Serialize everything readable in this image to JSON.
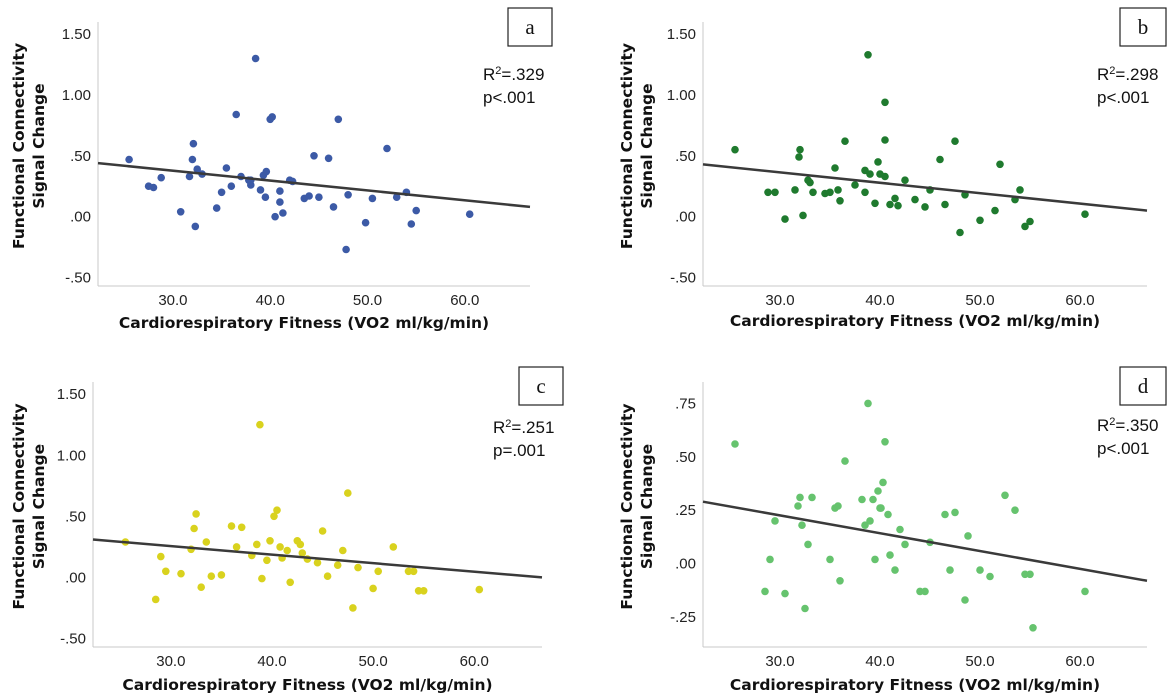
{
  "chart_data": [
    {
      "type": "scatter",
      "panel_label": "a",
      "xlabel": "Cardiorespiratory Fitness (VO2 ml/kg/min)",
      "ylabel_line1": "Functional Connectivity",
      "ylabel_line2": "Signal Change",
      "xlim": [
        22.3,
        66.7
      ],
      "ylim": [
        -0.57,
        1.6
      ],
      "x_ticks": [
        "30.0",
        "40.0",
        "50.0",
        "60.0"
      ],
      "y_ticks": [
        "1.50",
        "1.00",
        ".50",
        ".00",
        "-.50"
      ],
      "x_tick_values": [
        30,
        40,
        50,
        60
      ],
      "y_tick_values": [
        1.5,
        1.0,
        0.5,
        0.0,
        -0.5
      ],
      "stat_r2_prefix": "R",
      "stat_r2_value": "=.329",
      "stat_p": "p<.001",
      "fit_line": {
        "x": [
          22.3,
          66.7
        ],
        "y": [
          0.44,
          0.08
        ]
      },
      "point_color": "#3c5aa6",
      "points": [
        [
          25.5,
          0.47
        ],
        [
          27.5,
          0.25
        ],
        [
          28.0,
          0.24
        ],
        [
          28.8,
          0.32
        ],
        [
          30.8,
          0.04
        ],
        [
          31.7,
          0.33
        ],
        [
          32.0,
          0.47
        ],
        [
          32.5,
          0.39
        ],
        [
          33.0,
          0.35
        ],
        [
          34.5,
          0.07
        ],
        [
          35.0,
          0.2
        ],
        [
          35.5,
          0.4
        ],
        [
          36.0,
          0.25
        ],
        [
          36.5,
          0.84
        ],
        [
          37.0,
          0.33
        ],
        [
          37.8,
          0.3
        ],
        [
          38.0,
          0.26
        ],
        [
          38.5,
          1.3
        ],
        [
          39.0,
          0.22
        ],
        [
          39.3,
          0.34
        ],
        [
          39.6,
          0.37
        ],
        [
          39.5,
          0.16
        ],
        [
          40.0,
          0.8
        ],
        [
          40.2,
          0.82
        ],
        [
          40.5,
          0.0
        ],
        [
          41.0,
          0.12
        ],
        [
          41.0,
          0.21
        ],
        [
          41.3,
          0.03
        ],
        [
          42.0,
          0.3
        ],
        [
          42.3,
          0.29
        ],
        [
          44.0,
          0.17
        ],
        [
          44.5,
          0.5
        ],
        [
          45.0,
          0.16
        ],
        [
          46.0,
          0.48
        ],
        [
          46.5,
          0.08
        ],
        [
          47.0,
          0.8
        ],
        [
          47.8,
          -0.27
        ],
        [
          48.0,
          0.18
        ],
        [
          49.8,
          -0.05
        ],
        [
          50.5,
          0.15
        ],
        [
          52.0,
          0.56
        ],
        [
          53.0,
          0.16
        ],
        [
          54.0,
          0.2
        ],
        [
          54.5,
          -0.06
        ],
        [
          55.0,
          0.05
        ],
        [
          60.5,
          0.02
        ],
        [
          32.1,
          0.6
        ],
        [
          32.3,
          -0.08
        ],
        [
          38.0,
          0.3
        ],
        [
          43.5,
          0.15
        ]
      ]
    },
    {
      "type": "scatter",
      "panel_label": "b",
      "xlabel": "Cardiorespiratory Fitness (VO2 ml/kg/min)",
      "ylabel_line1": "Functional Connectivity",
      "ylabel_line2": "Signal Change",
      "xlim": [
        22.3,
        66.7
      ],
      "ylim": [
        -0.57,
        1.6
      ],
      "x_ticks": [
        "30.0",
        "40.0",
        "50.0",
        "60.0"
      ],
      "y_ticks": [
        "1.50",
        "1.00",
        ".50",
        ".00",
        "-.50"
      ],
      "x_tick_values": [
        30,
        40,
        50,
        60
      ],
      "y_tick_values": [
        1.5,
        1.0,
        0.5,
        0.0,
        -0.5
      ],
      "stat_r2_prefix": "R",
      "stat_r2_value": "=.298",
      "stat_p": "p<.001",
      "fit_line": {
        "x": [
          22.3,
          66.7
        ],
        "y": [
          0.43,
          0.05
        ]
      },
      "point_color": "#1f7a2e",
      "points": [
        [
          25.5,
          0.55
        ],
        [
          28.8,
          0.2
        ],
        [
          29.5,
          0.2
        ],
        [
          30.5,
          -0.02
        ],
        [
          31.5,
          0.22
        ],
        [
          31.9,
          0.49
        ],
        [
          32.0,
          0.55
        ],
        [
          32.3,
          0.01
        ],
        [
          32.8,
          0.3
        ],
        [
          33.3,
          0.2
        ],
        [
          34.5,
          0.19
        ],
        [
          35.0,
          0.2
        ],
        [
          35.5,
          0.4
        ],
        [
          36.0,
          0.13
        ],
        [
          36.5,
          0.62
        ],
        [
          37.5,
          0.26
        ],
        [
          38.5,
          0.2
        ],
        [
          38.8,
          1.33
        ],
        [
          39.0,
          0.35
        ],
        [
          39.5,
          0.11
        ],
        [
          39.8,
          0.45
        ],
        [
          40.0,
          0.35
        ],
        [
          40.5,
          0.63
        ],
        [
          40.5,
          0.94
        ],
        [
          41.0,
          0.1
        ],
        [
          41.5,
          0.15
        ],
        [
          41.8,
          0.09
        ],
        [
          42.5,
          0.3
        ],
        [
          43.5,
          0.14
        ],
        [
          44.5,
          0.08
        ],
        [
          45.0,
          0.22
        ],
        [
          46.0,
          0.47
        ],
        [
          46.5,
          0.1
        ],
        [
          47.5,
          0.62
        ],
        [
          48.0,
          -0.13
        ],
        [
          48.5,
          0.18
        ],
        [
          50.0,
          -0.03
        ],
        [
          51.5,
          0.05
        ],
        [
          52.0,
          0.43
        ],
        [
          53.5,
          0.14
        ],
        [
          54.0,
          0.22
        ],
        [
          54.5,
          -0.08
        ],
        [
          55.0,
          -0.04
        ],
        [
          60.5,
          0.02
        ],
        [
          38.5,
          0.38
        ],
        [
          40.5,
          0.33
        ],
        [
          35.8,
          0.22
        ],
        [
          33.0,
          0.28
        ]
      ]
    },
    {
      "type": "scatter",
      "panel_label": "c",
      "xlabel": "Cardiorespiratory Fitness (VO2 ml/kg/min)",
      "ylabel_line1": "Functional Connectivity",
      "ylabel_line2": "Signal Change",
      "xlim": [
        22.3,
        66.7
      ],
      "ylim": [
        -0.57,
        1.6
      ],
      "x_ticks": [
        "30.0",
        "40.0",
        "50.0",
        "60.0"
      ],
      "y_ticks": [
        "1.50",
        "1.00",
        ".50",
        ".00",
        "-.50"
      ],
      "x_tick_values": [
        30,
        40,
        50,
        60
      ],
      "y_tick_values": [
        1.5,
        1.0,
        0.5,
        0.0,
        -0.5
      ],
      "stat_r2_prefix": "R",
      "stat_r2_value": "=.251",
      "stat_p": "p=.001",
      "fit_line": {
        "x": [
          22.3,
          66.7
        ],
        "y": [
          0.31,
          0.0
        ]
      },
      "point_color": "#d9d21e",
      "points": [
        [
          25.5,
          0.29
        ],
        [
          28.5,
          -0.18
        ],
        [
          29.0,
          0.17
        ],
        [
          29.5,
          0.05
        ],
        [
          31.0,
          0.03
        ],
        [
          32.0,
          0.23
        ],
        [
          32.3,
          0.4
        ],
        [
          32.5,
          0.52
        ],
        [
          33.0,
          -0.08
        ],
        [
          33.5,
          0.29
        ],
        [
          34.0,
          0.01
        ],
        [
          35.0,
          0.02
        ],
        [
          36.0,
          0.42
        ],
        [
          36.5,
          0.25
        ],
        [
          37.0,
          0.41
        ],
        [
          38.5,
          0.27
        ],
        [
          38.8,
          1.25
        ],
        [
          39.0,
          -0.01
        ],
        [
          39.5,
          0.14
        ],
        [
          39.8,
          0.3
        ],
        [
          40.2,
          0.5
        ],
        [
          40.5,
          0.55
        ],
        [
          40.8,
          0.25
        ],
        [
          41.0,
          0.16
        ],
        [
          41.5,
          0.22
        ],
        [
          41.8,
          -0.04
        ],
        [
          42.5,
          0.3
        ],
        [
          42.8,
          0.27
        ],
        [
          43.5,
          0.15
        ],
        [
          44.5,
          0.12
        ],
        [
          45.0,
          0.38
        ],
        [
          45.5,
          0.01
        ],
        [
          46.5,
          0.1
        ],
        [
          47.0,
          0.22
        ],
        [
          47.5,
          0.69
        ],
        [
          48.0,
          -0.25
        ],
        [
          48.5,
          0.08
        ],
        [
          50.0,
          -0.09
        ],
        [
          50.5,
          0.05
        ],
        [
          52.0,
          0.25
        ],
        [
          53.5,
          0.05
        ],
        [
          54.0,
          0.05
        ],
        [
          54.5,
          -0.11
        ],
        [
          55.0,
          -0.11
        ],
        [
          60.5,
          -0.1
        ],
        [
          38.0,
          0.18
        ],
        [
          43.0,
          0.2
        ]
      ]
    },
    {
      "type": "scatter",
      "panel_label": "d",
      "xlabel": "Cardiorespiratory Fitness (VO2 ml/kg/min)",
      "ylabel_line1": "Functional Connectivity",
      "ylabel_line2": "Signal Change",
      "xlim": [
        22.3,
        66.7
      ],
      "ylim": [
        -0.39,
        0.85
      ],
      "x_ticks": [
        "30.0",
        "40.0",
        "50.0",
        "60.0"
      ],
      "y_ticks": [
        ".75",
        ".50",
        ".25",
        ".00",
        "-.25"
      ],
      "x_tick_values": [
        30,
        40,
        50,
        60
      ],
      "y_tick_values": [
        0.75,
        0.5,
        0.25,
        0.0,
        -0.25
      ],
      "stat_r2_prefix": "R",
      "stat_r2_value": "=.350",
      "stat_p": "p<.001",
      "fit_line": {
        "x": [
          22.3,
          66.7
        ],
        "y": [
          0.29,
          -0.08
        ]
      },
      "point_color": "#66c36e",
      "points": [
        [
          25.5,
          0.56
        ],
        [
          28.5,
          -0.13
        ],
        [
          29.0,
          0.02
        ],
        [
          29.5,
          0.2
        ],
        [
          30.5,
          -0.14
        ],
        [
          31.8,
          0.27
        ],
        [
          32.0,
          0.31
        ],
        [
          32.2,
          0.18
        ],
        [
          32.5,
          -0.21
        ],
        [
          32.8,
          0.09
        ],
        [
          33.2,
          0.31
        ],
        [
          35.0,
          0.02
        ],
        [
          35.5,
          0.26
        ],
        [
          35.8,
          0.27
        ],
        [
          36.0,
          -0.08
        ],
        [
          36.5,
          0.48
        ],
        [
          38.5,
          0.18
        ],
        [
          38.8,
          0.75
        ],
        [
          39.0,
          0.2
        ],
        [
          39.3,
          0.3
        ],
        [
          39.5,
          0.02
        ],
        [
          39.8,
          0.34
        ],
        [
          40.0,
          0.26
        ],
        [
          40.3,
          0.38
        ],
        [
          40.5,
          0.57
        ],
        [
          40.8,
          0.23
        ],
        [
          41.0,
          0.04
        ],
        [
          41.5,
          -0.03
        ],
        [
          42.0,
          0.16
        ],
        [
          42.5,
          0.09
        ],
        [
          44.0,
          -0.13
        ],
        [
          44.5,
          -0.13
        ],
        [
          45.0,
          0.1
        ],
        [
          46.5,
          0.23
        ],
        [
          47.0,
          -0.03
        ],
        [
          47.5,
          0.24
        ],
        [
          48.5,
          -0.17
        ],
        [
          48.8,
          0.13
        ],
        [
          50.0,
          -0.03
        ],
        [
          51.0,
          -0.06
        ],
        [
          52.5,
          0.32
        ],
        [
          53.5,
          0.25
        ],
        [
          54.5,
          -0.05
        ],
        [
          55.0,
          -0.05
        ],
        [
          55.3,
          -0.3
        ],
        [
          60.5,
          -0.13
        ],
        [
          38.2,
          0.3
        ],
        [
          40.1,
          0.26
        ]
      ]
    }
  ]
}
